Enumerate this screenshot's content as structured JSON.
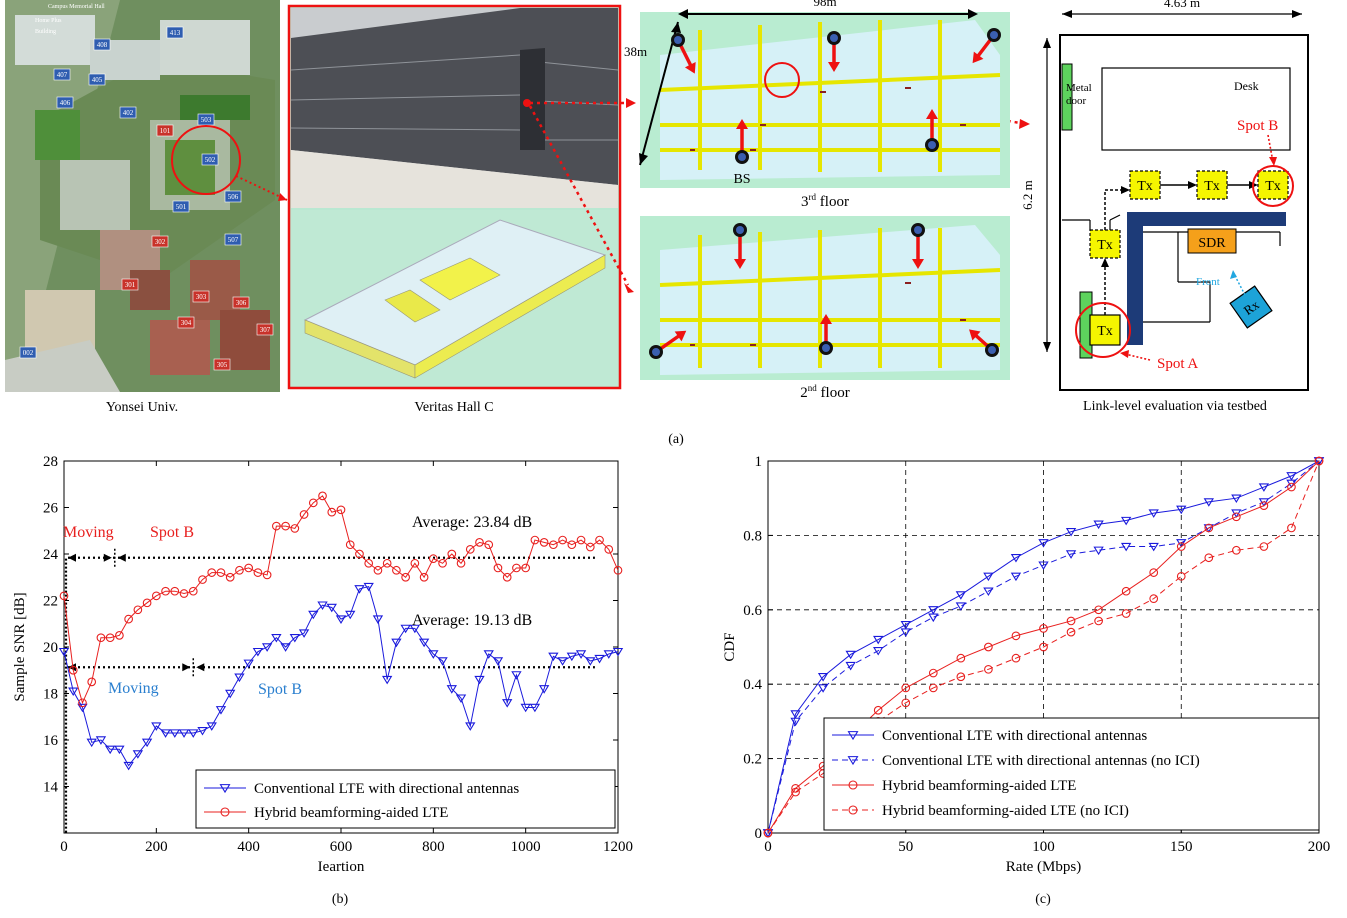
{
  "panel_a": {
    "label": "(a)",
    "campus_caption": "Yonsei Univ.",
    "campus_tags": [
      "Campus Memorial Hall",
      "Home Plus",
      "Building"
    ],
    "building_numbers": [
      "408",
      "413",
      "407",
      "405",
      "406",
      "402",
      "101",
      "503",
      "502",
      "501",
      "506",
      "507",
      "302",
      "301",
      "303",
      "304",
      "306",
      "305",
      "307",
      "002"
    ],
    "hall_caption": "Veritas Hall C",
    "floor3_caption_main": "3",
    "floor3_caption_sup": "rd",
    "floor3_caption_rest": " floor",
    "floor2_caption_main": "2",
    "floor2_caption_sup": "nd",
    "floor2_caption_rest": " floor",
    "dim_length": "98m",
    "dim_width": "38m",
    "bs_label": "BS",
    "testbed": {
      "caption": "Link-level evaluation via testbed",
      "width_label": "4.63 m",
      "height_label": "6.2 m",
      "metal_door": "Metal\ndoor",
      "desk": "Desk",
      "spot_b": "Spot B",
      "spot_a": "Spot A",
      "sdr": "SDR",
      "front": "Front",
      "rx": "Rx",
      "tx": "Tx"
    }
  },
  "panel_b": {
    "label": "(b)",
    "annotations": {
      "moving_red": "Moving",
      "spot_b_red": "Spot B",
      "avg_red": "Average: 23.84 dB",
      "avg_blue": "Average: 19.13 dB",
      "moving_blue": "Moving",
      "spot_b_blue": "Spot B"
    }
  },
  "panel_c": {
    "label": "(c)"
  },
  "colors": {
    "blue": "#1a1adc",
    "red": "#e8201f",
    "annot_blue": "#2a7fcf",
    "yellow": "#f5f500",
    "navy": "#1d3b78"
  },
  "chart_data": [
    {
      "type": "line",
      "xlabel": "Ieartion",
      "ylabel": "Sample SNR [dB]",
      "xlim": [
        0,
        1200
      ],
      "ylim": [
        12,
        28
      ],
      "xticks": [
        "0",
        "200",
        "400",
        "600",
        "800",
        "1000",
        "1200"
      ],
      "yticks": [
        "14",
        "16",
        "18",
        "20",
        "22",
        "24",
        "26",
        "28"
      ],
      "grid": false,
      "legend": "bottom-right",
      "x": [
        0,
        20,
        40,
        60,
        80,
        100,
        120,
        140,
        160,
        180,
        200,
        220,
        240,
        260,
        280,
        300,
        320,
        340,
        360,
        380,
        400,
        420,
        440,
        460,
        480,
        500,
        520,
        540,
        560,
        580,
        600,
        620,
        640,
        660,
        680,
        700,
        720,
        740,
        760,
        780,
        800,
        820,
        840,
        860,
        880,
        900,
        920,
        940,
        960,
        980,
        1000,
        1020,
        1040,
        1060,
        1080,
        1100,
        1120,
        1140,
        1160,
        1180,
        1200
      ],
      "series": [
        {
          "name": "Conventional LTE with directional antennas",
          "marker": "triangle-down",
          "values": [
            19.8,
            18.1,
            17.4,
            15.9,
            16.0,
            15.6,
            15.6,
            14.9,
            15.4,
            15.9,
            16.6,
            16.3,
            16.3,
            16.3,
            16.3,
            16.4,
            16.6,
            17.3,
            18.0,
            18.7,
            19.3,
            19.8,
            20.0,
            20.4,
            20.0,
            20.4,
            20.6,
            21.4,
            21.8,
            21.7,
            21.2,
            21.4,
            22.5,
            22.6,
            21.2,
            18.6,
            20.2,
            20.8,
            20.8,
            20.2,
            19.7,
            19.4,
            18.2,
            17.8,
            16.6,
            18.6,
            19.7,
            19.4,
            17.6,
            18.8,
            17.4,
            17.4,
            18.2,
            19.6,
            19.4,
            19.6,
            19.7,
            19.4,
            19.5,
            19.7,
            19.8
          ]
        },
        {
          "name": "Hybrid beamforming-aided LTE",
          "marker": "circle",
          "values": [
            22.2,
            19.0,
            17.6,
            18.5,
            20.4,
            20.4,
            20.5,
            21.2,
            21.6,
            21.9,
            22.2,
            22.4,
            22.4,
            22.3,
            22.4,
            22.9,
            23.2,
            23.2,
            23.0,
            23.3,
            23.4,
            23.2,
            23.1,
            25.2,
            25.2,
            25.1,
            25.7,
            26.2,
            26.5,
            25.8,
            25.9,
            24.4,
            24.0,
            23.6,
            23.3,
            23.6,
            23.3,
            23.0,
            23.6,
            23.0,
            23.8,
            23.6,
            24.0,
            23.6,
            24.2,
            24.5,
            24.4,
            23.4,
            23.0,
            23.4,
            23.4,
            24.6,
            24.5,
            24.4,
            24.6,
            24.4,
            24.6,
            24.3,
            24.6,
            24.2,
            23.3
          ]
        }
      ],
      "averages": [
        23.84,
        19.13
      ],
      "phase_markers_x": [
        110,
        280
      ]
    },
    {
      "type": "line",
      "xlabel": "Rate (Mbps)",
      "ylabel": "CDF",
      "xlim": [
        0,
        200
      ],
      "ylim": [
        0,
        1
      ],
      "xticks": [
        "0",
        "50",
        "100",
        "150",
        "200"
      ],
      "yticks": [
        "0",
        "0.2",
        "0.4",
        "0.6",
        "0.8",
        "1"
      ],
      "grid": true,
      "legend": "bottom-right",
      "x": [
        0,
        10,
        20,
        30,
        40,
        50,
        60,
        70,
        80,
        90,
        100,
        110,
        120,
        130,
        140,
        150,
        160,
        170,
        180,
        190,
        200
      ],
      "series": [
        {
          "name": "Conventional LTE with directional antennas",
          "style": "solid",
          "marker": "triangle-down",
          "values": [
            0,
            0.32,
            0.42,
            0.48,
            0.52,
            0.56,
            0.6,
            0.64,
            0.69,
            0.74,
            0.78,
            0.81,
            0.83,
            0.84,
            0.86,
            0.87,
            0.89,
            0.9,
            0.93,
            0.96,
            1.0
          ]
        },
        {
          "name": "Conventional LTE with directional antennas (no ICI)",
          "style": "dashed",
          "marker": "triangle-down",
          "values": [
            0,
            0.3,
            0.39,
            0.45,
            0.49,
            0.54,
            0.58,
            0.61,
            0.65,
            0.69,
            0.72,
            0.75,
            0.76,
            0.77,
            0.77,
            0.78,
            0.82,
            0.86,
            0.89,
            0.94,
            1.0
          ]
        },
        {
          "name": "Hybrid beamforming-aided LTE",
          "style": "solid",
          "marker": "circle",
          "values": [
            0,
            0.12,
            0.18,
            0.26,
            0.33,
            0.39,
            0.43,
            0.47,
            0.5,
            0.53,
            0.55,
            0.57,
            0.6,
            0.65,
            0.7,
            0.77,
            0.82,
            0.85,
            0.88,
            0.93,
            1.0
          ]
        },
        {
          "name": "Hybrid beamforming-aided LTE (no ICI)",
          "style": "dashed",
          "marker": "circle",
          "values": [
            0,
            0.11,
            0.16,
            0.23,
            0.3,
            0.35,
            0.39,
            0.42,
            0.44,
            0.47,
            0.5,
            0.54,
            0.57,
            0.59,
            0.63,
            0.69,
            0.74,
            0.76,
            0.77,
            0.82,
            1.0
          ]
        }
      ]
    }
  ]
}
